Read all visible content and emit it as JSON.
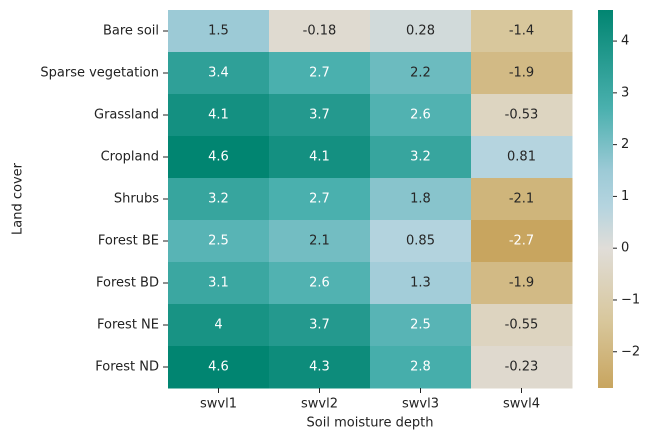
{
  "chart_data": {
    "type": "heatmap",
    "x_label": "Soil moisture depth",
    "y_label": "Land cover",
    "columns": [
      "swvl1",
      "swvl2",
      "swvl3",
      "swvl4"
    ],
    "rows": [
      "Bare soil",
      "Sparse vegetation",
      "Grassland",
      "Cropland",
      "Shrubs",
      "Forest BE",
      "Forest BD",
      "Forest NE",
      "Forest ND"
    ],
    "values": [
      [
        1.5,
        -0.18,
        0.28,
        -1.4
      ],
      [
        3.4,
        2.7,
        2.2,
        -1.9
      ],
      [
        4.1,
        3.7,
        2.6,
        -0.53
      ],
      [
        4.6,
        4.1,
        3.2,
        0.81
      ],
      [
        3.2,
        2.7,
        1.8,
        -2.1
      ],
      [
        2.5,
        2.1,
        0.85,
        -2.7
      ],
      [
        3.1,
        2.6,
        1.3,
        -1.9
      ],
      [
        4,
        3.7,
        2.5,
        -0.55
      ],
      [
        4.6,
        4.3,
        2.8,
        -0.23
      ]
    ],
    "clim": [
      -2.7,
      4.6
    ],
    "cticks": [
      {
        "value": -2,
        "label": "−2"
      },
      {
        "value": -1,
        "label": "−1"
      },
      0,
      1,
      2,
      3,
      4
    ],
    "colorscale": [
      {
        "value": -2.7,
        "color": "#c8a55f"
      },
      {
        "value": -1.4,
        "color": "#d8c79c"
      },
      {
        "value": 0,
        "color": "#e0ddd8"
      },
      {
        "value": 0.8,
        "color": "#b5d4df"
      },
      {
        "value": 1.5,
        "color": "#9ccad6"
      },
      {
        "value": 2.7,
        "color": "#4ab0ae"
      },
      {
        "value": 4.6,
        "color": "#018571"
      }
    ]
  }
}
